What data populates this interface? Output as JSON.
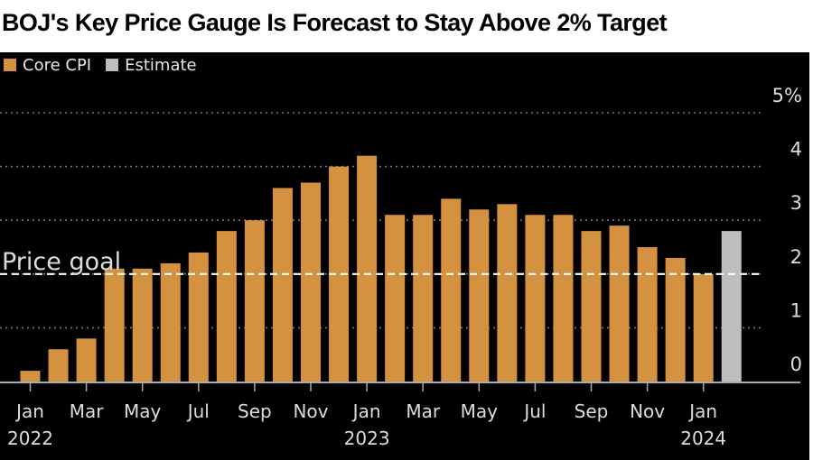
{
  "title": "BOJ's Key Price Gauge Is Forecast to Stay Above 2% Target",
  "colors": {
    "core_cpi": "#D4913F",
    "estimate": "#BEBEBE",
    "background": "#000000",
    "text": "#DCDCDC",
    "price_goal_line": "#FFFFFF"
  },
  "legend": [
    {
      "label": "Core CPI",
      "color_key": "core_cpi"
    },
    {
      "label": "Estimate",
      "color_key": "estimate"
    }
  ],
  "chart_data": {
    "type": "bar",
    "title": "BOJ's Key Price Gauge Is Forecast to Stay Above 2% Target",
    "xlabel": "",
    "ylabel": "",
    "ylim": [
      0,
      5
    ],
    "y_ticks": [
      0,
      1,
      2,
      3,
      4,
      5
    ],
    "y_tick_labels": [
      "0",
      "1",
      "2",
      "3",
      "4",
      "5%"
    ],
    "y_axis_side": "right",
    "grid": true,
    "legend_position": "top-left",
    "categories": [
      "Jan 2022",
      "Feb 2022",
      "Mar 2022",
      "Apr 2022",
      "May 2022",
      "Jun 2022",
      "Jul 2022",
      "Aug 2022",
      "Sep 2022",
      "Oct 2022",
      "Nov 2022",
      "Dec 2022",
      "Jan 2023",
      "Feb 2023",
      "Mar 2023",
      "Apr 2023",
      "May 2023",
      "Jun 2023",
      "Jul 2023",
      "Aug 2023",
      "Sep 2023",
      "Oct 2023",
      "Nov 2023",
      "Dec 2023",
      "Jan 2024",
      "Feb 2024"
    ],
    "series": [
      {
        "name": "Core CPI",
        "color_key": "core_cpi",
        "values": [
          0.2,
          0.6,
          0.8,
          2.1,
          2.1,
          2.2,
          2.4,
          2.8,
          3.0,
          3.6,
          3.7,
          4.0,
          4.2,
          3.1,
          3.1,
          3.4,
          3.2,
          3.3,
          3.1,
          3.1,
          2.8,
          2.9,
          2.5,
          2.3,
          2.0,
          null
        ]
      },
      {
        "name": "Estimate",
        "color_key": "estimate",
        "values": [
          null,
          null,
          null,
          null,
          null,
          null,
          null,
          null,
          null,
          null,
          null,
          null,
          null,
          null,
          null,
          null,
          null,
          null,
          null,
          null,
          null,
          null,
          null,
          null,
          null,
          2.8
        ]
      }
    ],
    "x_tick_labels": [
      {
        "index": 0,
        "month": "Jan",
        "year": "2022"
      },
      {
        "index": 2,
        "month": "Mar",
        "year": ""
      },
      {
        "index": 4,
        "month": "May",
        "year": ""
      },
      {
        "index": 6,
        "month": "Jul",
        "year": ""
      },
      {
        "index": 8,
        "month": "Sep",
        "year": ""
      },
      {
        "index": 10,
        "month": "Nov",
        "year": ""
      },
      {
        "index": 12,
        "month": "Jan",
        "year": "2023"
      },
      {
        "index": 14,
        "month": "Mar",
        "year": ""
      },
      {
        "index": 16,
        "month": "May",
        "year": ""
      },
      {
        "index": 18,
        "month": "Jul",
        "year": ""
      },
      {
        "index": 20,
        "month": "Sep",
        "year": ""
      },
      {
        "index": 22,
        "month": "Nov",
        "year": ""
      },
      {
        "index": 24,
        "month": "Jan",
        "year": "2024"
      }
    ],
    "annotations": [
      {
        "label": "Price goal",
        "y": 2,
        "style": "dashed"
      }
    ]
  }
}
